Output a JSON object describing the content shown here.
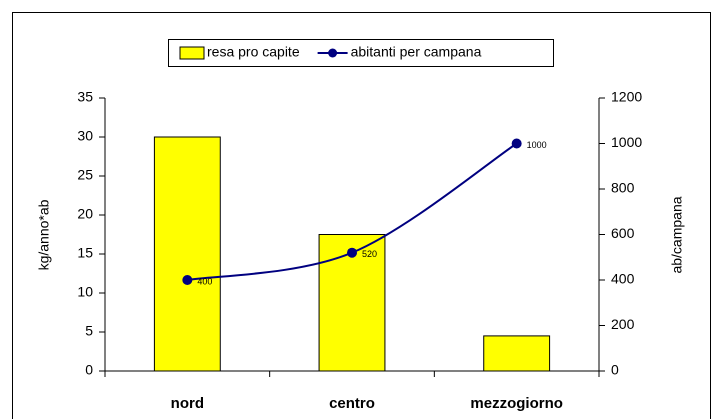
{
  "chart_data": {
    "type": "bar",
    "categories": [
      "nord",
      "centro",
      "mezzogiorno"
    ],
    "series": [
      {
        "name": "resa pro capite",
        "type": "bar",
        "color": "#ffff00",
        "values": [
          30,
          17.5,
          4.5
        ]
      },
      {
        "name": "abitanti per campana",
        "type": "line",
        "axis": "y2",
        "color": "#000080",
        "values": [
          400,
          520,
          1000
        ]
      }
    ],
    "ylabel": "kg/anno*ab",
    "y2label": "ab/campana",
    "ylim": [
      0,
      35
    ],
    "yticks": [
      0,
      5,
      10,
      15,
      20,
      25,
      30,
      35
    ],
    "y2lim": [
      0,
      1200
    ],
    "y2ticks": [
      0,
      200,
      400,
      600,
      800,
      1000,
      1200
    ],
    "grid": false,
    "legend": "top"
  }
}
